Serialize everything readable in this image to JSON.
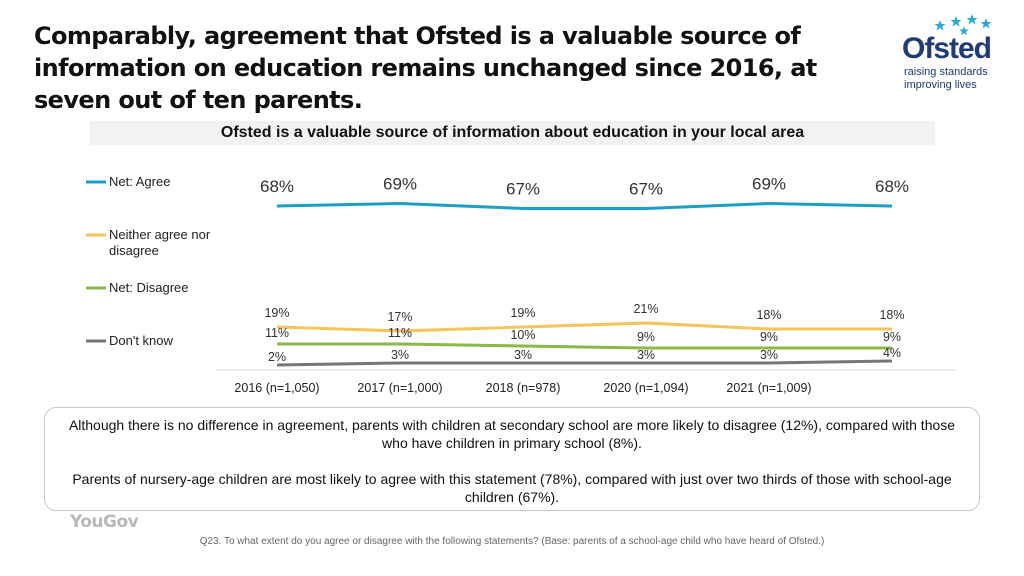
{
  "headline": "Comparably, agreement that Ofsted is a valuable source of information on education remains unchanged since 2016, at seven out of ten parents.",
  "logo": {
    "name": "Ofsted",
    "tagline_1": "raising standards",
    "tagline_2": "improving lives",
    "icon": "star-cluster-icon",
    "color": "#1f3b7a",
    "star_color": "#2aa8d8"
  },
  "chart_data": {
    "type": "line",
    "title": "Ofsted is a valuable source of information about education in your local area",
    "categories": [
      "2016 (n=1,050)",
      "2017 (n=1,000)",
      "2018 (n=978)",
      "2020 (n=1,094)",
      "2021 (n=1,009)",
      ""
    ],
    "series": [
      {
        "name": "Net: Agree",
        "color": "#1aa0c8",
        "values": [
          68,
          69,
          67,
          67,
          69,
          68
        ],
        "labels": [
          "68%",
          "69%",
          "67%",
          "67%",
          "69%",
          "68%"
        ]
      },
      {
        "name": "Neither agree nor disagree",
        "color": "#f5c55a",
        "values": [
          19,
          17,
          19,
          21,
          18,
          18
        ],
        "labels": [
          "19%",
          "17%",
          "19%",
          "21%",
          "18%",
          "18%"
        ]
      },
      {
        "name": "Net: Disagree",
        "color": "#8ab84a",
        "values": [
          11,
          11,
          10,
          9,
          9,
          9
        ],
        "labels": [
          "11%",
          "11%",
          "10%",
          "9%",
          "9%",
          "9%"
        ]
      },
      {
        "name": "Don't know",
        "color": "#777777",
        "values": [
          2,
          3,
          3,
          3,
          3,
          4
        ],
        "labels": [
          "2%",
          "3%",
          "3%",
          "3%",
          "3%",
          "4%"
        ]
      }
    ],
    "legend": "left",
    "grid": false
  },
  "notes": {
    "paragraph_1": "Although there is no difference in agreement, parents with children at secondary school are more likely to disagree (12%), compared with those who have children in primary school (8%).",
    "paragraph_2": "Parents of nursery-age children are most likely to agree with this statement (78%), compared with just over two thirds of those with school-age children (67%)."
  },
  "brand": "YouGov",
  "footnote": "Q23. To what extent do you agree or disagree with the following statements? (Base: parents of a school-age child who have heard of Ofsted.)"
}
